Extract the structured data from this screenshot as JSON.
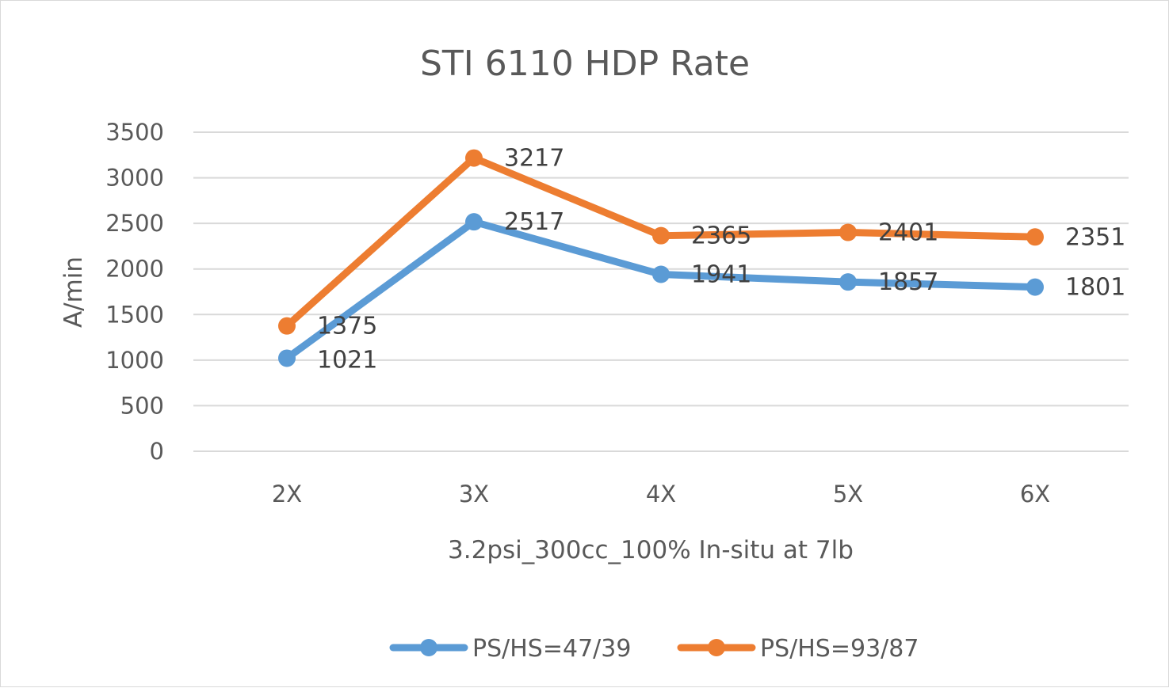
{
  "chart_data": {
    "type": "line",
    "title": "STI 6110 HDP Rate",
    "xlabel": "3.2psi_300cc_100% In-situ at 7lb",
    "ylabel": "A/min",
    "categories": [
      "2X",
      "3X",
      "4X",
      "5X",
      "6X"
    ],
    "ylim": [
      0,
      3500
    ],
    "yticks": [
      "0",
      "500",
      "1000",
      "1500",
      "2000",
      "2500",
      "3000",
      "3500"
    ],
    "grid": "horizontal",
    "legend_position": "bottom",
    "series": [
      {
        "name": "PS/HS=47/39",
        "color": "#5b9bd5",
        "values": [
          1021,
          2517,
          1941,
          1857,
          1801
        ],
        "labels": [
          "1021",
          "2517",
          "1941",
          "1857",
          "1801"
        ]
      },
      {
        "name": "PS/HS=93/87",
        "color": "#ed7d31",
        "values": [
          1375,
          3217,
          2365,
          2401,
          2351
        ],
        "labels": [
          "1375",
          "3217",
          "2365",
          "2401",
          "2351"
        ]
      }
    ]
  }
}
